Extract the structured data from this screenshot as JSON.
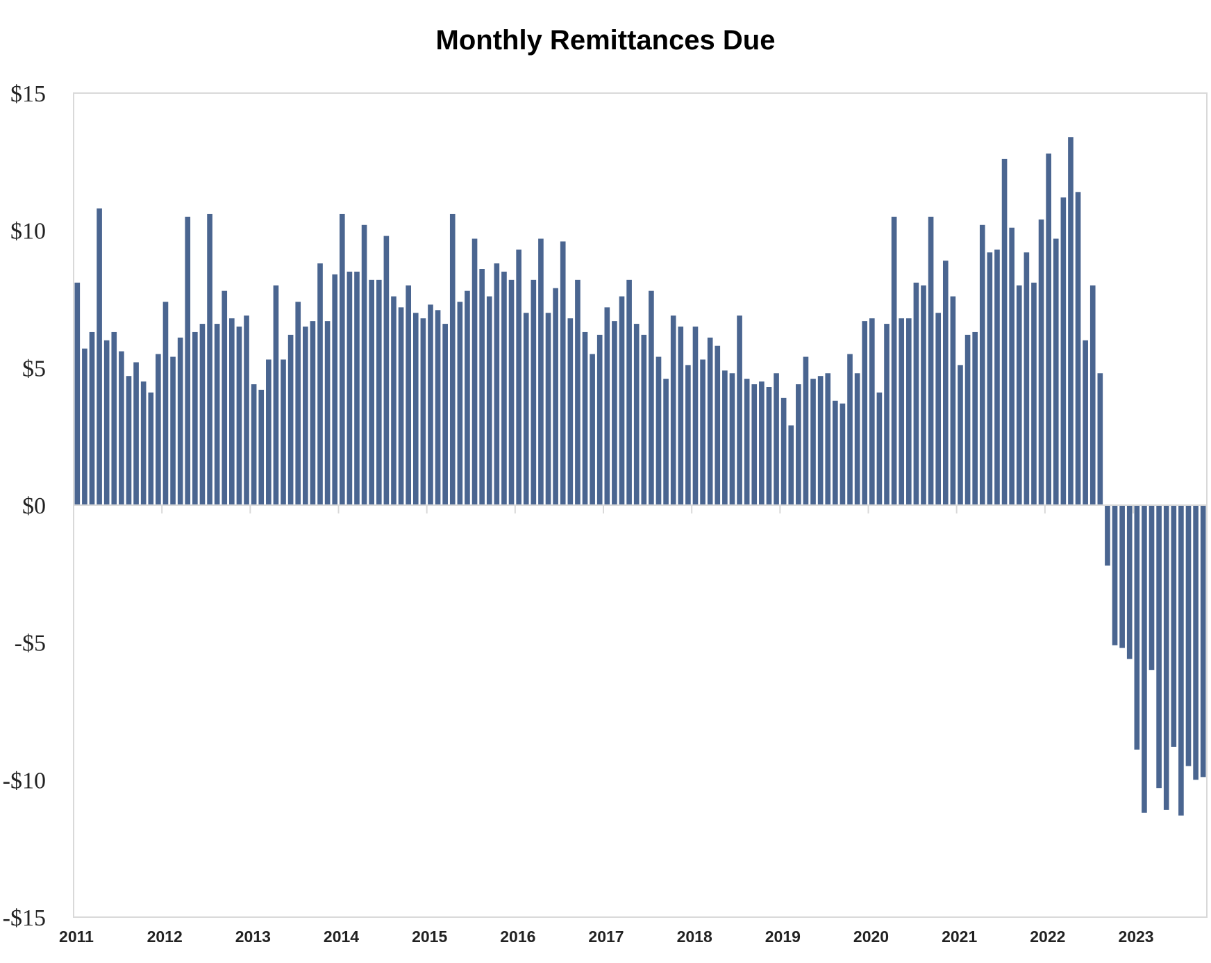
{
  "chart_data": {
    "type": "bar",
    "title": "Monthly Remittances Due",
    "xlabel": "",
    "ylabel": "",
    "ylim": [
      -15,
      15
    ],
    "yticks": [
      15,
      10,
      5,
      0,
      -5,
      -10,
      -15
    ],
    "ytick_labels": [
      "$15",
      "$10",
      "$5",
      "$0",
      "-$5",
      "-$10",
      "-$15"
    ],
    "xtick_labels": [
      "2011",
      "2012",
      "2013",
      "2014",
      "2015",
      "2016",
      "2017",
      "2018",
      "2019",
      "2020",
      "2021",
      "2022",
      "2023"
    ],
    "grid": false,
    "bar_color": "#4a6590",
    "start": "2011-01",
    "values": [
      8.1,
      5.7,
      6.3,
      10.8,
      6.0,
      6.3,
      5.6,
      4.7,
      5.2,
      4.5,
      4.1,
      5.5,
      7.4,
      5.4,
      6.1,
      10.5,
      6.3,
      6.6,
      10.6,
      6.6,
      7.8,
      6.8,
      6.5,
      6.9,
      4.4,
      4.2,
      5.3,
      8.0,
      5.3,
      6.2,
      7.4,
      6.5,
      6.7,
      8.8,
      6.7,
      8.4,
      10.6,
      8.5,
      8.5,
      10.2,
      8.2,
      8.2,
      9.8,
      7.6,
      7.2,
      8.0,
      7.0,
      6.8,
      7.3,
      7.1,
      6.6,
      10.6,
      7.4,
      7.8,
      9.7,
      8.6,
      7.6,
      8.8,
      8.5,
      8.2,
      9.3,
      7.0,
      8.2,
      9.7,
      7.0,
      7.9,
      9.6,
      6.8,
      8.2,
      6.3,
      5.5,
      6.2,
      7.2,
      6.7,
      7.6,
      8.2,
      6.6,
      6.2,
      7.8,
      5.4,
      4.6,
      6.9,
      6.5,
      5.1,
      6.5,
      5.3,
      6.1,
      5.8,
      4.9,
      4.8,
      6.9,
      4.6,
      4.4,
      4.5,
      4.3,
      4.8,
      3.9,
      2.9,
      4.4,
      5.4,
      4.6,
      4.7,
      4.8,
      3.8,
      3.7,
      5.5,
      4.8,
      6.7,
      6.8,
      4.1,
      6.6,
      10.5,
      6.8,
      6.8,
      8.1,
      8.0,
      10.5,
      7.0,
      8.9,
      7.6,
      5.1,
      6.2,
      6.3,
      10.2,
      9.2,
      9.3,
      12.6,
      10.1,
      8.0,
      9.2,
      8.1,
      10.4,
      12.8,
      9.7,
      11.2,
      13.4,
      11.4,
      6.0,
      8.0,
      4.8,
      -2.2,
      -5.1,
      -5.2,
      -5.6,
      -8.9,
      -11.2,
      -6.0,
      -10.3,
      -11.1,
      -8.8,
      -11.3,
      -9.5,
      -10.0,
      -9.9
    ]
  }
}
